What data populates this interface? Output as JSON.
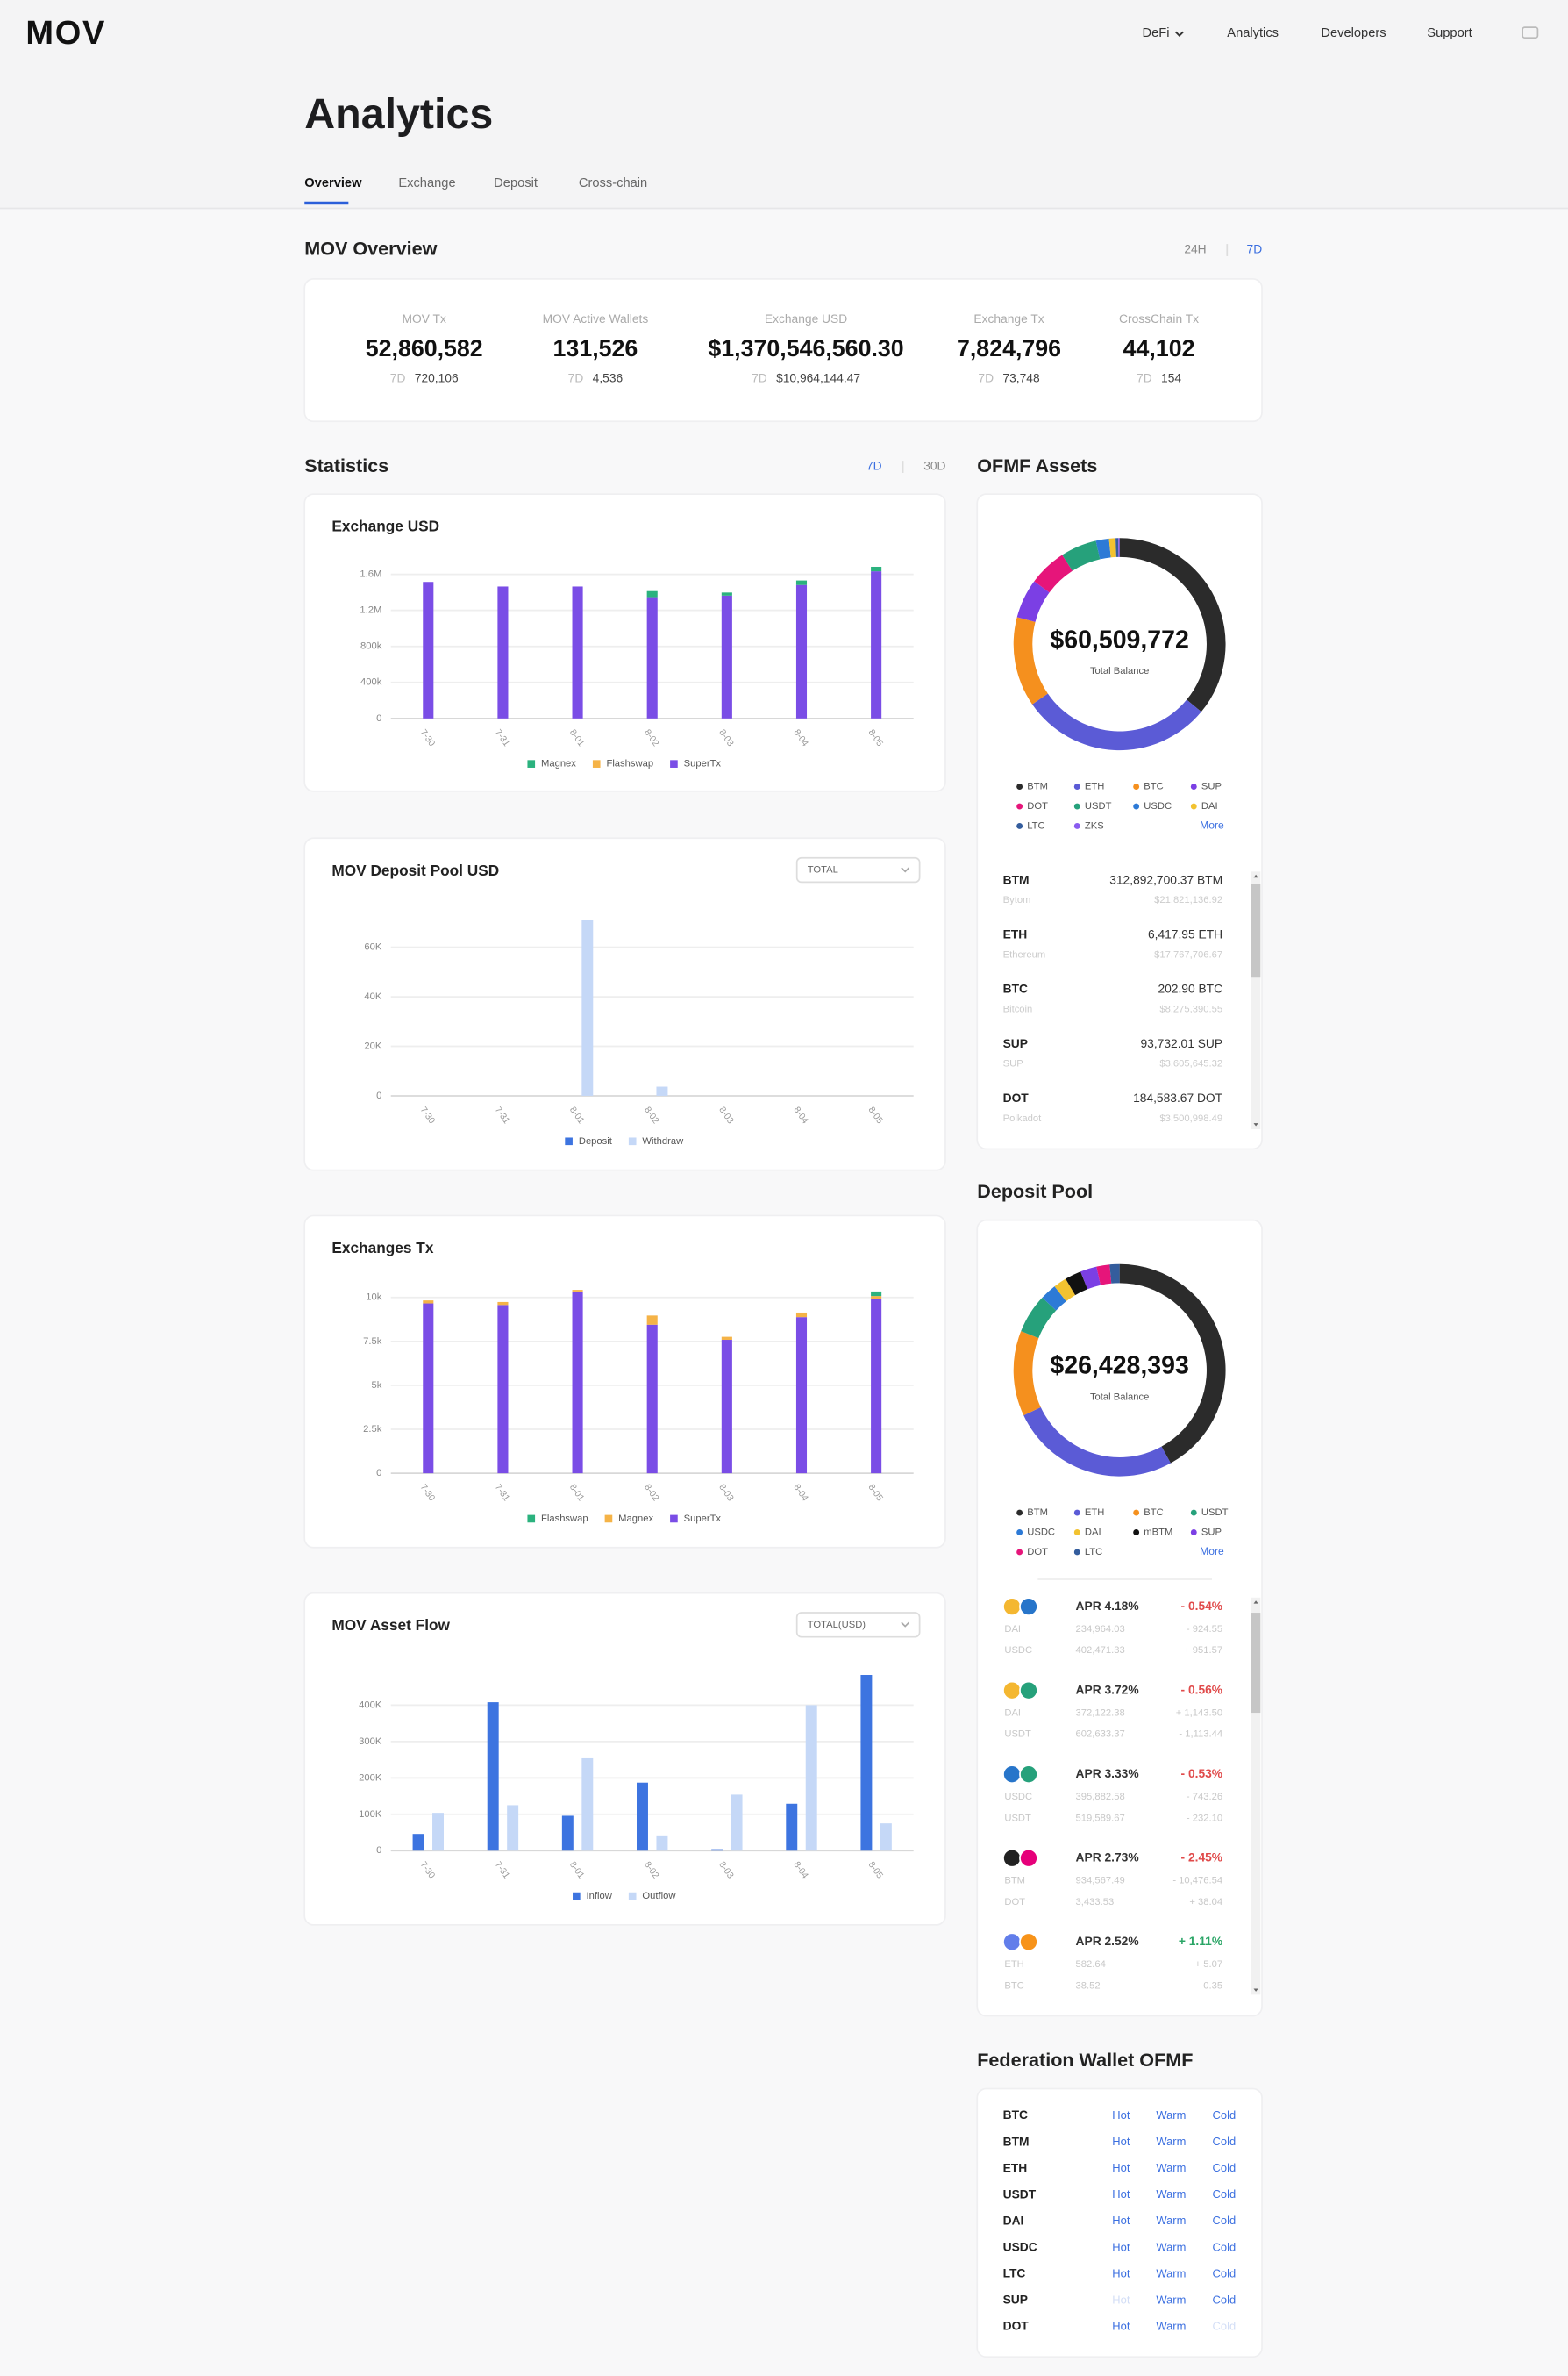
{
  "header": {
    "logo": "MOV",
    "nav": [
      "DeFi",
      "Analytics",
      "Developers",
      "Support"
    ]
  },
  "page_title": "Analytics",
  "tabs": [
    "Overview",
    "Exchange",
    "Deposit",
    "Cross-chain"
  ],
  "overview": {
    "title": "MOV Overview",
    "periods": [
      "24H",
      "7D"
    ],
    "stats": [
      {
        "label": "MOV Tx",
        "value": "52,860,582",
        "period": "7D",
        "change": "720,106"
      },
      {
        "label": "MOV Active Wallets",
        "value": "131,526",
        "period": "7D",
        "change": "4,536"
      },
      {
        "label": "Exchange USD",
        "value": "$1,370,546,560.30",
        "period": "7D",
        "change": "$10,964,144.47"
      },
      {
        "label": "Exchange Tx",
        "value": "7,824,796",
        "period": "7D",
        "change": "73,748"
      },
      {
        "label": "CrossChain Tx",
        "value": "44,102",
        "period": "7D",
        "change": "154"
      }
    ]
  },
  "statistics": {
    "title": "Statistics",
    "periods": [
      "7D",
      "30D"
    ],
    "charts": [
      {
        "type": "bar",
        "stacked": true,
        "title": "Exchange USD",
        "grid": true,
        "categories": [
          "7-30",
          "7-31",
          "8-01",
          "8-02",
          "8-03",
          "8-04",
          "8-05"
        ],
        "series": [
          {
            "name": "Magnex",
            "color": "#2bb27e",
            "values": [
              0,
              0,
              0,
              67000,
              34000,
              50000,
              50000
            ]
          },
          {
            "name": "Flashswap",
            "color": "#f5b347",
            "values": [
              0,
              0,
              0,
              0,
              0,
              0,
              0
            ]
          },
          {
            "name": "SuperTx",
            "color": "#7a4de6",
            "values": [
              1516000,
              1465000,
              1465000,
              1347000,
              1364000,
              1482000,
              1634000
            ]
          }
        ],
        "ylim": [
          0,
          1700000
        ],
        "yticks": [
          0,
          {
            "value": 400000,
            "label": "400k"
          },
          {
            "value": 800000,
            "label": "800k"
          },
          {
            "value": 1200000,
            "label": "1.2M"
          },
          {
            "value": 1600000,
            "label": "1.6M"
          }
        ]
      },
      {
        "type": "bar",
        "stacked": false,
        "title": "MOV Deposit Pool USD",
        "dropdown": "TOTAL",
        "grid": true,
        "categories": [
          "7-30",
          "7-31",
          "8-01",
          "8-02",
          "8-03",
          "8-04",
          "8-05"
        ],
        "series": [
          {
            "name": "Deposit",
            "color": "#3d74e0",
            "values": [
              0,
              0,
              0,
              0,
              0,
              0,
              0
            ]
          },
          {
            "name": "Withdraw",
            "color": "#c5d8f7",
            "values": [
              0,
              0,
              71000,
              3700,
              0,
              0,
              0
            ]
          }
        ],
        "ylim": [
          0,
          75000
        ],
        "yticks": [
          0,
          {
            "value": 20000,
            "label": "20K"
          },
          {
            "value": 40000,
            "label": "40K"
          },
          {
            "value": 60000,
            "label": "60K"
          }
        ]
      },
      {
        "type": "bar",
        "stacked": true,
        "title": "Exchanges Tx",
        "grid": true,
        "categories": [
          "7-30",
          "7-31",
          "8-01",
          "8-02",
          "8-03",
          "8-04",
          "8-05"
        ],
        "series": [
          {
            "name": "Flashswap",
            "color": "#2bb27e",
            "values": [
              0,
              0,
              0,
              0,
              0,
              0,
              260
            ]
          },
          {
            "name": "Magnex",
            "color": "#f5b347",
            "values": [
              170,
              170,
              90,
              520,
              170,
              260,
              170
            ]
          },
          {
            "name": "SuperTx",
            "color": "#7a4de6",
            "values": [
              9660,
              9570,
              10340,
              8450,
              7590,
              8880,
              9910
            ]
          }
        ],
        "ylim": [
          0,
          11000
        ],
        "yticks": [
          0,
          {
            "value": 2500,
            "label": "2.5k"
          },
          {
            "value": 5000,
            "label": "5k"
          },
          {
            "value": 7500,
            "label": "7.5k"
          },
          {
            "value": 10000,
            "label": "10k"
          }
        ]
      },
      {
        "type": "bar",
        "stacked": false,
        "title": "MOV Asset Flow",
        "dropdown": "TOTAL(USD)",
        "grid": true,
        "categories": [
          "7-30",
          "7-31",
          "8-01",
          "8-02",
          "8-03",
          "8-04",
          "8-05"
        ],
        "series": [
          {
            "name": "Inflow",
            "color": "#3d74e0",
            "values": [
              46000,
              408000,
              96000,
              187000,
              4000,
              129000,
              483000
            ]
          },
          {
            "name": "Outflow",
            "color": "#c5d8f7",
            "values": [
              104000,
              125000,
              254000,
              42000,
              154000,
              400000,
              75000
            ]
          }
        ],
        "ylim": [
          0,
          500000
        ],
        "yticks": [
          0,
          {
            "value": 100000,
            "label": "100K"
          },
          {
            "value": 200000,
            "label": "200K"
          },
          {
            "value": 300000,
            "label": "300K"
          },
          {
            "value": 400000,
            "label": "400K"
          }
        ]
      }
    ]
  },
  "ofmf": {
    "title": "OFMF Assets",
    "total": "$60,509,772",
    "total_label": "Total Balance",
    "more": "More",
    "legend": [
      {
        "name": "BTM",
        "color": "#2b2b2b",
        "share": 36
      },
      {
        "name": "ETH",
        "color": "#5b5bd6",
        "share": 29.4
      },
      {
        "name": "BTC",
        "color": "#f5901e",
        "share": 13.7
      },
      {
        "name": "SUP",
        "color": "#7b3fe4",
        "share": 6
      },
      {
        "name": "DOT",
        "color": "#e6157a",
        "share": 5.8
      },
      {
        "name": "USDT",
        "color": "#26a17b",
        "share": 5.5
      },
      {
        "name": "USDC",
        "color": "#2d7ad6",
        "share": 2
      },
      {
        "name": "DAI",
        "color": "#f2c230",
        "share": 1
      },
      {
        "name": "LTC",
        "color": "#345d9d",
        "share": 0.4
      },
      {
        "name": "ZKS",
        "color": "#8a5cf0",
        "share": 0.2
      }
    ],
    "assets": [
      {
        "symbol": "BTM",
        "amount": "312,892,700.37 BTM",
        "name": "Bytom",
        "usd": "$21,821,136.92"
      },
      {
        "symbol": "ETH",
        "amount": "6,417.95 ETH",
        "name": "Ethereum",
        "usd": "$17,767,706.67"
      },
      {
        "symbol": "BTC",
        "amount": "202.90 BTC",
        "name": "Bitcoin",
        "usd": "$8,275,390.55"
      },
      {
        "symbol": "SUP",
        "amount": "93,732.01 SUP",
        "name": "SUP",
        "usd": "$3,605,645.32"
      },
      {
        "symbol": "DOT",
        "amount": "184,583.67 DOT",
        "name": "Polkadot",
        "usd": "$3,500,998.49"
      }
    ]
  },
  "deposit_pool": {
    "title": "Deposit Pool",
    "total": "$26,428,393",
    "total_label": "Total Balance",
    "more": "More",
    "legend": [
      {
        "name": "BTM",
        "color": "#2b2b2b",
        "share": 42
      },
      {
        "name": "ETH",
        "color": "#5b5bd6",
        "share": 26
      },
      {
        "name": "BTC",
        "color": "#f5901e",
        "share": 13
      },
      {
        "name": "USDT",
        "color": "#26a17b",
        "share": 6
      },
      {
        "name": "USDC",
        "color": "#2d7ad6",
        "share": 2.5
      },
      {
        "name": "DAI",
        "color": "#f2c230",
        "share": 2
      },
      {
        "name": "mBTM",
        "color": "#111111",
        "share": 2.5
      },
      {
        "name": "SUP",
        "color": "#7b3fe4",
        "share": 2.5
      },
      {
        "name": "DOT",
        "color": "#e6157a",
        "share": 2
      },
      {
        "name": "LTC",
        "color": "#345d9d",
        "share": 1.5
      }
    ],
    "pools": [
      {
        "apr": "APR 4.18%",
        "change": "- 0.54%",
        "icon_colors": [
          "#f4b731",
          "#2775ca"
        ],
        "tokens": [
          {
            "symbol": "DAI",
            "amount": "234,964.03",
            "delta": "- 924.55"
          },
          {
            "symbol": "USDC",
            "amount": "402,471.33",
            "delta": "+ 951.57"
          }
        ]
      },
      {
        "apr": "APR 3.72%",
        "change": "- 0.56%",
        "icon_colors": [
          "#f4b731",
          "#26a17b"
        ],
        "tokens": [
          {
            "symbol": "DAI",
            "amount": "372,122.38",
            "delta": "+ 1,143.50"
          },
          {
            "symbol": "USDT",
            "amount": "602,633.37",
            "delta": "- 1,113.44"
          }
        ]
      },
      {
        "apr": "APR 3.33%",
        "change": "- 0.53%",
        "icon_colors": [
          "#2775ca",
          "#26a17b"
        ],
        "tokens": [
          {
            "symbol": "USDC",
            "amount": "395,882.58",
            "delta": "- 743.26"
          },
          {
            "symbol": "USDT",
            "amount": "519,589.67",
            "delta": "- 232.10"
          }
        ]
      },
      {
        "apr": "APR 2.73%",
        "change": "- 2.45%",
        "icon_colors": [
          "#222222",
          "#e6007a"
        ],
        "tokens": [
          {
            "symbol": "BTM",
            "amount": "934,567.49",
            "delta": "- 10,476.54"
          },
          {
            "symbol": "DOT",
            "amount": "3,433.53",
            "delta": "+ 38.04"
          }
        ]
      },
      {
        "apr": "APR 2.52%",
        "change": "+ 1.11%",
        "icon_colors": [
          "#627eea",
          "#f7931a"
        ],
        "tokens": [
          {
            "symbol": "ETH",
            "amount": "582.64",
            "delta": "+ 5.07"
          },
          {
            "symbol": "BTC",
            "amount": "38.52",
            "delta": "- 0.35"
          }
        ]
      }
    ]
  },
  "federation": {
    "title": "Federation Wallet OFMF",
    "rows": [
      {
        "asset": "BTC",
        "links": [
          "Hot",
          "Warm",
          "Cold"
        ],
        "active": [
          true,
          true,
          true
        ]
      },
      {
        "asset": "BTM",
        "links": [
          "Hot",
          "Warm",
          "Cold"
        ],
        "active": [
          true,
          true,
          true
        ]
      },
      {
        "asset": "ETH",
        "links": [
          "Hot",
          "Warm",
          "Cold"
        ],
        "active": [
          true,
          true,
          true
        ]
      },
      {
        "asset": "USDT",
        "links": [
          "Hot",
          "Warm",
          "Cold"
        ],
        "active": [
          true,
          true,
          true
        ]
      },
      {
        "asset": "DAI",
        "links": [
          "Hot",
          "Warm",
          "Cold"
        ],
        "active": [
          true,
          true,
          true
        ]
      },
      {
        "asset": "USDC",
        "links": [
          "Hot",
          "Warm",
          "Cold"
        ],
        "active": [
          true,
          true,
          true
        ]
      },
      {
        "asset": "LTC",
        "links": [
          "Hot",
          "Warm",
          "Cold"
        ],
        "active": [
          true,
          true,
          true
        ]
      },
      {
        "asset": "SUP",
        "links": [
          "Hot",
          "Warm",
          "Cold"
        ],
        "active": [
          false,
          true,
          true
        ]
      },
      {
        "asset": "DOT",
        "links": [
          "Hot",
          "Warm",
          "Cold"
        ],
        "active": [
          true,
          true,
          false
        ]
      }
    ]
  }
}
